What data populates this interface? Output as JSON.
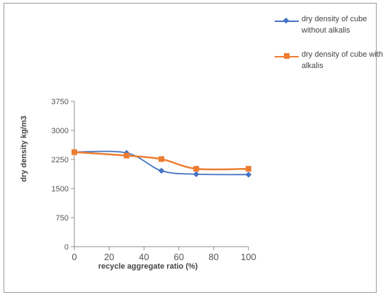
{
  "chart_data": {
    "type": "line",
    "x": [
      0,
      30,
      50,
      70,
      100
    ],
    "series": [
      {
        "name": "dry density of cube without alkalis",
        "color": "#4472c4",
        "marker": "diamond",
        "values": [
          2440,
          2420,
          1960,
          1870,
          1860
        ]
      },
      {
        "name": "dry density of cube with alkalis",
        "color": "#ed7d31",
        "marker": "square",
        "values": [
          2440,
          2350,
          2260,
          2010,
          2010
        ]
      }
    ],
    "xlabel": "recycle aggregate ratio (%)",
    "ylabel": "dry density kg/m3",
    "xlim": [
      0,
      100
    ],
    "ylim": [
      0,
      3750
    ],
    "xticks": [
      0,
      20,
      40,
      60,
      80,
      100
    ],
    "yticks": [
      0,
      750,
      1500,
      2250,
      3000,
      3750
    ],
    "grid": false,
    "legend_position": "top-right"
  }
}
